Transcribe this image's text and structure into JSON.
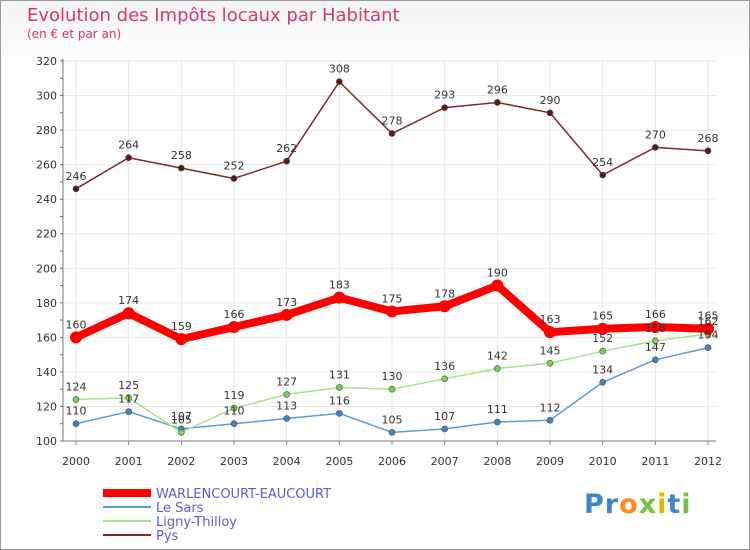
{
  "page": {
    "title": "Evolution des Impôts locaux par Habitant",
    "subtitle": "(en € et par an)",
    "logo_text": "Proxiti"
  },
  "colors": {
    "title": "#d5386a",
    "axis_text": "#333333",
    "grid": "#e6e6e6",
    "minor_tick": "#d5386a"
  },
  "chart_data": {
    "type": "line",
    "x": [
      "2000",
      "2001",
      "2002",
      "2003",
      "2004",
      "2005",
      "2006",
      "2007",
      "2008",
      "2009",
      "2010",
      "2011",
      "2012"
    ],
    "ylim": [
      100,
      320
    ],
    "yticks": [
      100,
      120,
      140,
      160,
      180,
      200,
      220,
      240,
      260,
      280,
      300,
      320
    ],
    "grid": true,
    "legend_position": "bottom-left",
    "series": [
      {
        "name": "WARLENCOURT-EAUCOURT",
        "color": "#ff0000",
        "marker": "#ff0000",
        "values": [
          160,
          174,
          159,
          166,
          173,
          183,
          175,
          178,
          190,
          163,
          165,
          166,
          165
        ]
      },
      {
        "name": "Le Sars",
        "color": "#5b9bd5",
        "marker": "#3f86c8",
        "values": [
          110,
          117,
          107,
          110,
          113,
          116,
          105,
          107,
          111,
          112,
          134,
          147,
          154
        ]
      },
      {
        "name": "Ligny-Thilloy",
        "color": "#a8e28a",
        "marker": "#7bd04c",
        "values": [
          124,
          125,
          105,
          119,
          127,
          131,
          130,
          136,
          142,
          145,
          152,
          158,
          162
        ]
      },
      {
        "name": "Pys",
        "color": "#7a2a2a",
        "marker": "#5c1818",
        "values": [
          246,
          264,
          258,
          252,
          262,
          308,
          278,
          293,
          296,
          290,
          254,
          270,
          268
        ]
      }
    ]
  }
}
